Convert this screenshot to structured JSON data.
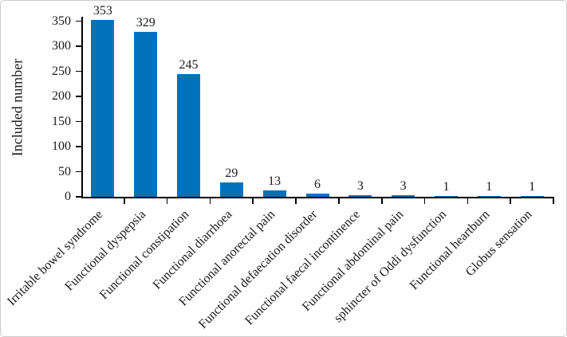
{
  "figure": {
    "background": "#ffffff",
    "border_color": "#cccccc"
  },
  "chart_data": {
    "type": "bar",
    "title": "",
    "xlabel": "",
    "ylabel": "Included number",
    "categories": [
      "Irritable bowel syndrome",
      "Functional dyspepsia",
      "Functional constipation",
      "Functional diarrhoea",
      "Functional anorectal pain",
      "Functional defaecation disorder",
      "Functional faecal incontinence",
      "Functional abdominal pain",
      "sphincter of Oddi dysfunction",
      "Functional heartburn",
      "Globus sensation"
    ],
    "values": [
      353,
      329,
      245,
      29,
      13,
      6,
      3,
      3,
      1,
      1,
      1
    ],
    "yticks": [
      0,
      50,
      100,
      150,
      200,
      250,
      300,
      350
    ],
    "ylim": [
      0,
      350
    ],
    "grid": "off",
    "legend": "none",
    "value_labels_position": "above bars",
    "x_label_rotation_deg": 45,
    "bar_color": "#0072BC",
    "axis_color": "#000000",
    "text_color": "#1a1a1a"
  }
}
